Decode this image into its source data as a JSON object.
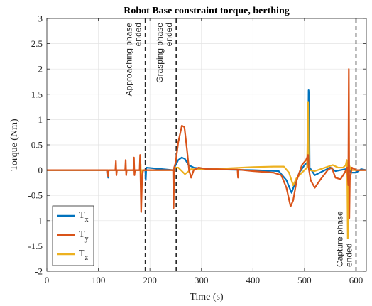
{
  "chart_data": {
    "type": "line",
    "title": "Robot Base constraint torque, berthing",
    "xlabel": "Time (s)",
    "ylabel": "Torque (Nm)",
    "xlim": [
      0,
      620
    ],
    "ylim": [
      -2,
      3
    ],
    "xticks": [
      0,
      100,
      200,
      300,
      400,
      500,
      600
    ],
    "yticks": [
      -2,
      -1.5,
      -1,
      -0.5,
      0,
      0.5,
      1,
      1.5,
      2,
      2.5,
      3
    ],
    "xtick_labels": [
      "0",
      "100",
      "200",
      "300",
      "400",
      "500",
      "600"
    ],
    "ytick_labels": [
      "-2",
      "-1.5",
      "-1",
      "-0.5",
      "0",
      "0.5",
      "1",
      "1.5",
      "2",
      "2.5",
      "3"
    ],
    "grid": true,
    "legend_position": "bottom-left",
    "legend": [
      {
        "base": "T",
        "sub": "x",
        "color": "#0072bd"
      },
      {
        "base": "T",
        "sub": "y",
        "color": "#d95319"
      },
      {
        "base": "T",
        "sub": "z",
        "color": "#edb120"
      }
    ],
    "phase_markers": [
      {
        "x": 191,
        "label_lines": [
          "Approaching phase",
          "ended"
        ],
        "label_position": "top"
      },
      {
        "x": 251,
        "label_lines": [
          "Grasping phase",
          "ended"
        ],
        "label_position": "top"
      },
      {
        "x": 600,
        "label_lines": [
          "Capture phase",
          "ended"
        ],
        "label_position": "bottom"
      }
    ],
    "series": [
      {
        "name": "Tx",
        "color": "#0072bd",
        "points": [
          [
            0,
            0
          ],
          [
            118,
            0
          ],
          [
            119,
            -0.15
          ],
          [
            120,
            0
          ],
          [
            191,
            0
          ],
          [
            192,
            -0.2
          ],
          [
            193,
            0.05
          ],
          [
            245,
            0
          ],
          [
            250,
            0.1
          ],
          [
            255,
            0.2
          ],
          [
            262,
            0.25
          ],
          [
            268,
            0.22
          ],
          [
            275,
            0.1
          ],
          [
            285,
            0.05
          ],
          [
            300,
            0.03
          ],
          [
            350,
            0.01
          ],
          [
            400,
            0
          ],
          [
            450,
            -0.02
          ],
          [
            465,
            -0.2
          ],
          [
            475,
            -0.45
          ],
          [
            480,
            -0.3
          ],
          [
            490,
            -0.05
          ],
          [
            500,
            0.1
          ],
          [
            505,
            0.15
          ],
          [
            507,
            0.2
          ],
          [
            508,
            1.58
          ],
          [
            509,
            1.45
          ],
          [
            510,
            0.05
          ],
          [
            520,
            -0.1
          ],
          [
            530,
            -0.05
          ],
          [
            550,
            0.05
          ],
          [
            560,
            -0.02
          ],
          [
            570,
            0
          ],
          [
            580,
            0.02
          ],
          [
            585,
            0.05
          ],
          [
            590,
            -0.05
          ],
          [
            600,
            -0.05
          ],
          [
            610,
            0.02
          ],
          [
            620,
            0
          ]
        ]
      },
      {
        "name": "Ty",
        "color": "#d95319",
        "points": [
          [
            0,
            0
          ],
          [
            118,
            0
          ],
          [
            119,
            -0.12
          ],
          [
            120,
            0
          ],
          [
            133,
            0
          ],
          [
            134,
            0.18
          ],
          [
            135,
            -0.1
          ],
          [
            136,
            0
          ],
          [
            152,
            0
          ],
          [
            153,
            0.2
          ],
          [
            154,
            -0.1
          ],
          [
            155,
            0
          ],
          [
            168,
            0
          ],
          [
            169,
            0.25
          ],
          [
            170,
            -0.1
          ],
          [
            171,
            0
          ],
          [
            180,
            0
          ],
          [
            181,
            0.3
          ],
          [
            183,
            -0.83
          ],
          [
            185,
            -0.1
          ],
          [
            187,
            0
          ],
          [
            245,
            0
          ],
          [
            246,
            -0.75
          ],
          [
            247,
            0.05
          ],
          [
            250,
            0.15
          ],
          [
            255,
            0.55
          ],
          [
            262,
            0.88
          ],
          [
            267,
            0.85
          ],
          [
            272,
            0.4
          ],
          [
            276,
            0
          ],
          [
            280,
            -0.15
          ],
          [
            285,
            0
          ],
          [
            295,
            0.05
          ],
          [
            310,
            0.02
          ],
          [
            330,
            0.02
          ],
          [
            350,
            0.01
          ],
          [
            370,
            0.01
          ],
          [
            371,
            -0.15
          ],
          [
            372,
            0.01
          ],
          [
            400,
            -0.02
          ],
          [
            440,
            -0.05
          ],
          [
            455,
            -0.1
          ],
          [
            465,
            -0.35
          ],
          [
            473,
            -0.72
          ],
          [
            478,
            -0.6
          ],
          [
            485,
            -0.2
          ],
          [
            495,
            0.1
          ],
          [
            503,
            0.2
          ],
          [
            507,
            0.3
          ],
          [
            508,
            0.05
          ],
          [
            512,
            -0.2
          ],
          [
            520,
            -0.35
          ],
          [
            530,
            -0.2
          ],
          [
            545,
            0
          ],
          [
            553,
            0.05
          ],
          [
            560,
            -0.15
          ],
          [
            570,
            -0.18
          ],
          [
            578,
            -0.05
          ],
          [
            583,
            0.05
          ],
          [
            585,
            -0.3
          ],
          [
            586,
            2.0
          ],
          [
            587,
            -0.95
          ],
          [
            588,
            -0.2
          ],
          [
            592,
            0.05
          ],
          [
            600,
            0
          ],
          [
            620,
            0
          ]
        ]
      },
      {
        "name": "Tz",
        "color": "#edb120",
        "points": [
          [
            0,
            0
          ],
          [
            181,
            0
          ],
          [
            182,
            0.12
          ],
          [
            183,
            -0.35
          ],
          [
            184,
            0
          ],
          [
            245,
            0
          ],
          [
            248,
            0.05
          ],
          [
            255,
            0.05
          ],
          [
            262,
            -0.02
          ],
          [
            268,
            -0.08
          ],
          [
            272,
            -0.05
          ],
          [
            280,
            0.02
          ],
          [
            300,
            0.01
          ],
          [
            320,
            0.02
          ],
          [
            360,
            0.04
          ],
          [
            400,
            0.06
          ],
          [
            440,
            0.07
          ],
          [
            460,
            0.07
          ],
          [
            470,
            -0.05
          ],
          [
            478,
            -0.3
          ],
          [
            485,
            -0.15
          ],
          [
            495,
            -0.05
          ],
          [
            505,
            0.05
          ],
          [
            507,
            1.35
          ],
          [
            508,
            0.1
          ],
          [
            510,
            0
          ],
          [
            520,
            -0.02
          ],
          [
            540,
            0.05
          ],
          [
            555,
            0.1
          ],
          [
            565,
            0.05
          ],
          [
            575,
            0.05
          ],
          [
            580,
            0.1
          ],
          [
            582,
            0.2
          ],
          [
            583,
            -0.1
          ],
          [
            584,
            -1.35
          ],
          [
            585,
            0.15
          ],
          [
            590,
            0
          ],
          [
            620,
            0
          ]
        ]
      }
    ]
  }
}
